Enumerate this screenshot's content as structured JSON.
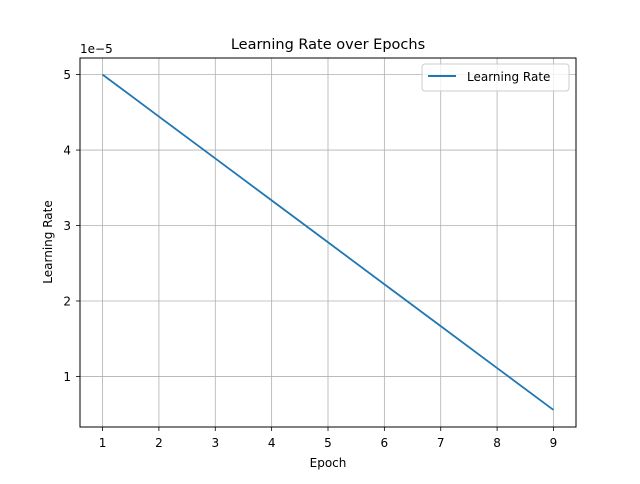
{
  "chart_data": {
    "type": "line",
    "title": "Learning Rate over Epochs",
    "xlabel": "Epoch",
    "ylabel": "Learning Rate",
    "y_offset_label": "1e−5",
    "x": [
      1,
      2,
      3,
      4,
      5,
      6,
      7,
      8,
      9
    ],
    "series": [
      {
        "name": "Learning Rate",
        "color": "#1f77b4",
        "values": [
          5e-05,
          4.444e-05,
          3.889e-05,
          3.333e-05,
          2.778e-05,
          2.222e-05,
          1.667e-05,
          1.111e-05,
          5.56e-06
        ]
      }
    ],
    "xticks": [
      "1",
      "2",
      "3",
      "4",
      "5",
      "6",
      "7",
      "8",
      "9"
    ],
    "yticks": [
      "1",
      "2",
      "3",
      "4",
      "5"
    ],
    "xlim": [
      0.6,
      9.4
    ],
    "ylim": [
      3.3e-06,
      5.22e-05
    ],
    "grid": true,
    "legend_position": "upper right"
  }
}
